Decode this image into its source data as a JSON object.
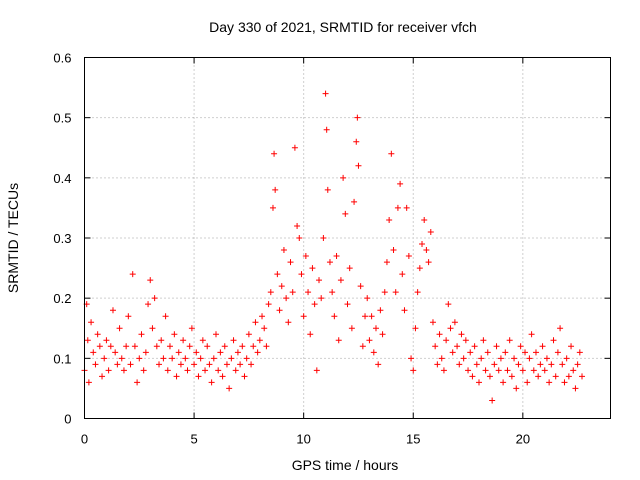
{
  "chart_data": {
    "type": "scatter",
    "title": "Day 330 of 2021, SRMTID for receiver vfch",
    "xlabel": "GPS time / hours",
    "ylabel": "SRMTID / TECUs",
    "xlim": [
      0,
      24
    ],
    "ylim": [
      0,
      0.6
    ],
    "xticks": [
      0,
      5,
      10,
      15,
      20
    ],
    "xtick_labels": [
      "0",
      "5",
      "10",
      "15",
      "20"
    ],
    "yticks": [
      0,
      0.1,
      0.2,
      0.3,
      0.4,
      0.5,
      0.6
    ],
    "ytick_labels": [
      "0",
      "0.1",
      "0.2",
      "0.3",
      "0.4",
      "0.5",
      "0.6"
    ],
    "grid": true,
    "marker": "+",
    "color": "#ff0000",
    "series": [
      {
        "name": "SRMTID",
        "points": [
          [
            0.0,
            0.08
          ],
          [
            0.1,
            0.19
          ],
          [
            0.15,
            0.13
          ],
          [
            0.2,
            0.06
          ],
          [
            0.3,
            0.16
          ],
          [
            0.4,
            0.11
          ],
          [
            0.5,
            0.09
          ],
          [
            0.6,
            0.14
          ],
          [
            0.7,
            0.12
          ],
          [
            0.8,
            0.07
          ],
          [
            0.9,
            0.1
          ],
          [
            1.0,
            0.13
          ],
          [
            1.1,
            0.08
          ],
          [
            1.2,
            0.12
          ],
          [
            1.3,
            0.18
          ],
          [
            1.4,
            0.11
          ],
          [
            1.5,
            0.09
          ],
          [
            1.6,
            0.15
          ],
          [
            1.7,
            0.1
          ],
          [
            1.8,
            0.08
          ],
          [
            1.9,
            0.12
          ],
          [
            2.0,
            0.17
          ],
          [
            2.1,
            0.09
          ],
          [
            2.2,
            0.24
          ],
          [
            2.3,
            0.12
          ],
          [
            2.4,
            0.06
          ],
          [
            2.5,
            0.1
          ],
          [
            2.6,
            0.14
          ],
          [
            2.7,
            0.08
          ],
          [
            2.8,
            0.11
          ],
          [
            2.9,
            0.19
          ],
          [
            3.0,
            0.23
          ],
          [
            3.1,
            0.15
          ],
          [
            3.2,
            0.2
          ],
          [
            3.3,
            0.12
          ],
          [
            3.4,
            0.09
          ],
          [
            3.5,
            0.13
          ],
          [
            3.6,
            0.1
          ],
          [
            3.7,
            0.17
          ],
          [
            3.8,
            0.08
          ],
          [
            3.9,
            0.12
          ],
          [
            4.0,
            0.1
          ],
          [
            4.1,
            0.14
          ],
          [
            4.2,
            0.07
          ],
          [
            4.3,
            0.11
          ],
          [
            4.4,
            0.09
          ],
          [
            4.5,
            0.13
          ],
          [
            4.6,
            0.1
          ],
          [
            4.7,
            0.08
          ],
          [
            4.8,
            0.12
          ],
          [
            4.9,
            0.15
          ],
          [
            5.0,
            0.09
          ],
          [
            5.1,
            0.11
          ],
          [
            5.2,
            0.07
          ],
          [
            5.3,
            0.1
          ],
          [
            5.4,
            0.13
          ],
          [
            5.5,
            0.08
          ],
          [
            5.6,
            0.12
          ],
          [
            5.7,
            0.09
          ],
          [
            5.8,
            0.06
          ],
          [
            5.9,
            0.1
          ],
          [
            6.0,
            0.14
          ],
          [
            6.1,
            0.08
          ],
          [
            6.2,
            0.11
          ],
          [
            6.3,
            0.07
          ],
          [
            6.4,
            0.12
          ],
          [
            6.5,
            0.09
          ],
          [
            6.6,
            0.05
          ],
          [
            6.7,
            0.1
          ],
          [
            6.8,
            0.13
          ],
          [
            6.9,
            0.08
          ],
          [
            7.0,
            0.11
          ],
          [
            7.1,
            0.09
          ],
          [
            7.2,
            0.12
          ],
          [
            7.3,
            0.07
          ],
          [
            7.4,
            0.1
          ],
          [
            7.5,
            0.14
          ],
          [
            7.6,
            0.09
          ],
          [
            7.7,
            0.12
          ],
          [
            7.8,
            0.16
          ],
          [
            7.9,
            0.11
          ],
          [
            8.0,
            0.13
          ],
          [
            8.1,
            0.17
          ],
          [
            8.2,
            0.15
          ],
          [
            8.3,
            0.12
          ],
          [
            8.4,
            0.19
          ],
          [
            8.5,
            0.21
          ],
          [
            8.6,
            0.35
          ],
          [
            8.65,
            0.44
          ],
          [
            8.7,
            0.38
          ],
          [
            8.8,
            0.24
          ],
          [
            8.9,
            0.18
          ],
          [
            9.0,
            0.22
          ],
          [
            9.1,
            0.28
          ],
          [
            9.2,
            0.2
          ],
          [
            9.3,
            0.16
          ],
          [
            9.4,
            0.26
          ],
          [
            9.5,
            0.21
          ],
          [
            9.6,
            0.45
          ],
          [
            9.7,
            0.32
          ],
          [
            9.8,
            0.3
          ],
          [
            9.9,
            0.24
          ],
          [
            10.0,
            0.17
          ],
          [
            10.1,
            0.27
          ],
          [
            10.2,
            0.21
          ],
          [
            10.3,
            0.14
          ],
          [
            10.4,
            0.25
          ],
          [
            10.5,
            0.19
          ],
          [
            10.6,
            0.08
          ],
          [
            10.7,
            0.23
          ],
          [
            10.8,
            0.2
          ],
          [
            10.9,
            0.3
          ],
          [
            11.0,
            0.54
          ],
          [
            11.05,
            0.48
          ],
          [
            11.1,
            0.38
          ],
          [
            11.2,
            0.26
          ],
          [
            11.3,
            0.21
          ],
          [
            11.4,
            0.17
          ],
          [
            11.5,
            0.27
          ],
          [
            11.6,
            0.13
          ],
          [
            11.7,
            0.23
          ],
          [
            11.8,
            0.4
          ],
          [
            11.9,
            0.34
          ],
          [
            12.0,
            0.19
          ],
          [
            12.1,
            0.25
          ],
          [
            12.2,
            0.15
          ],
          [
            12.3,
            0.36
          ],
          [
            12.4,
            0.46
          ],
          [
            12.45,
            0.5
          ],
          [
            12.5,
            0.42
          ],
          [
            12.6,
            0.22
          ],
          [
            12.7,
            0.12
          ],
          [
            12.8,
            0.17
          ],
          [
            12.9,
            0.2
          ],
          [
            13.0,
            0.13
          ],
          [
            13.1,
            0.17
          ],
          [
            13.2,
            0.11
          ],
          [
            13.3,
            0.15
          ],
          [
            13.4,
            0.09
          ],
          [
            13.5,
            0.18
          ],
          [
            13.6,
            0.14
          ],
          [
            13.7,
            0.21
          ],
          [
            13.8,
            0.26
          ],
          [
            13.9,
            0.33
          ],
          [
            14.0,
            0.44
          ],
          [
            14.1,
            0.28
          ],
          [
            14.2,
            0.21
          ],
          [
            14.3,
            0.35
          ],
          [
            14.4,
            0.39
          ],
          [
            14.5,
            0.24
          ],
          [
            14.6,
            0.18
          ],
          [
            14.7,
            0.35
          ],
          [
            14.8,
            0.27
          ],
          [
            14.9,
            0.1
          ],
          [
            15.0,
            0.08
          ],
          [
            15.1,
            0.15
          ],
          [
            15.2,
            0.21
          ],
          [
            15.3,
            0.25
          ],
          [
            15.4,
            0.29
          ],
          [
            15.5,
            0.33
          ],
          [
            15.6,
            0.28
          ],
          [
            15.7,
            0.26
          ],
          [
            15.8,
            0.31
          ],
          [
            15.9,
            0.16
          ],
          [
            16.0,
            0.12
          ],
          [
            16.1,
            0.09
          ],
          [
            16.2,
            0.14
          ],
          [
            16.3,
            0.1
          ],
          [
            16.4,
            0.08
          ],
          [
            16.5,
            0.13
          ],
          [
            16.6,
            0.19
          ],
          [
            16.7,
            0.15
          ],
          [
            16.8,
            0.11
          ],
          [
            16.9,
            0.16
          ],
          [
            17.0,
            0.12
          ],
          [
            17.1,
            0.09
          ],
          [
            17.2,
            0.14
          ],
          [
            17.3,
            0.1
          ],
          [
            17.4,
            0.13
          ],
          [
            17.5,
            0.08
          ],
          [
            17.6,
            0.11
          ],
          [
            17.7,
            0.07
          ],
          [
            17.8,
            0.12
          ],
          [
            17.9,
            0.09
          ],
          [
            18.0,
            0.06
          ],
          [
            18.1,
            0.1
          ],
          [
            18.2,
            0.13
          ],
          [
            18.3,
            0.08
          ],
          [
            18.4,
            0.11
          ],
          [
            18.5,
            0.07
          ],
          [
            18.6,
            0.03
          ],
          [
            18.7,
            0.09
          ],
          [
            18.8,
            0.12
          ],
          [
            18.9,
            0.08
          ],
          [
            19.0,
            0.1
          ],
          [
            19.1,
            0.06
          ],
          [
            19.2,
            0.11
          ],
          [
            19.3,
            0.08
          ],
          [
            19.4,
            0.13
          ],
          [
            19.5,
            0.07
          ],
          [
            19.6,
            0.1
          ],
          [
            19.7,
            0.05
          ],
          [
            19.8,
            0.09
          ],
          [
            19.9,
            0.12
          ],
          [
            20.0,
            0.08
          ],
          [
            20.1,
            0.11
          ],
          [
            20.2,
            0.06
          ],
          [
            20.3,
            0.1
          ],
          [
            20.4,
            0.14
          ],
          [
            20.5,
            0.08
          ],
          [
            20.6,
            0.11
          ],
          [
            20.7,
            0.07
          ],
          [
            20.8,
            0.09
          ],
          [
            20.9,
            0.12
          ],
          [
            21.0,
            0.08
          ],
          [
            21.1,
            0.1
          ],
          [
            21.2,
            0.06
          ],
          [
            21.3,
            0.09
          ],
          [
            21.4,
            0.13
          ],
          [
            21.5,
            0.07
          ],
          [
            21.6,
            0.11
          ],
          [
            21.7,
            0.15
          ],
          [
            21.8,
            0.09
          ],
          [
            21.9,
            0.06
          ],
          [
            22.0,
            0.1
          ],
          [
            22.1,
            0.07
          ],
          [
            22.2,
            0.12
          ],
          [
            22.3,
            0.08
          ],
          [
            22.4,
            0.05
          ],
          [
            22.5,
            0.09
          ],
          [
            22.6,
            0.11
          ],
          [
            22.7,
            0.07
          ]
        ]
      }
    ]
  }
}
